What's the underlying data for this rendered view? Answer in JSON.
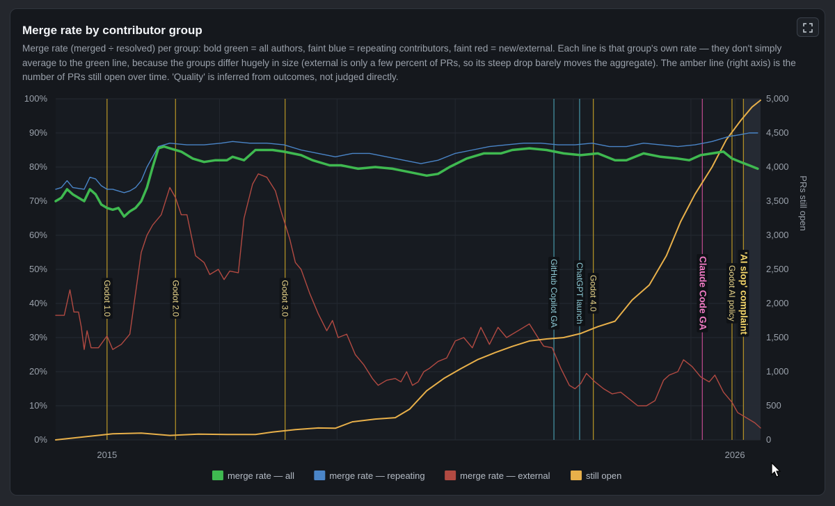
{
  "card": {
    "title": "Merge rate by contributor group",
    "description": "Merge rate (merged ÷ resolved) per group: bold green = all authors, faint blue = repeating contributors, faint red = new/external. Each line is that group's own rate — they don't simply average to the green line, because the groups differ hugely in size (external is only a few percent of PRs, so its steep drop barely moves the aggregate). The amber line (right axis) is the number of PRs still open over time. 'Quality' is inferred from outcomes, not judged directly.",
    "expand_icon": "expand-icon"
  },
  "chart_data": {
    "type": "line",
    "x_range": [
      2014.0,
      2026.35
    ],
    "x_ticks": [
      {
        "x": 2014.9,
        "label": "2015"
      },
      {
        "x": 2025.9,
        "label": "2026"
      }
    ],
    "x_minor_ticks": [
      2016.87,
      2018.93,
      2021.0,
      2023.07,
      2025.13
    ],
    "y_left": {
      "min": 0,
      "max": 100,
      "step": 10,
      "format": "percent"
    },
    "y_right": {
      "min": 0,
      "max": 5000,
      "step": 500,
      "label": "PRs still open"
    },
    "grid": true,
    "legend_position": "bottom",
    "series": [
      {
        "name": "merge rate — all",
        "axis": "left",
        "color": "#3fb950",
        "width": 3.5,
        "points": [
          [
            2014.0,
            70
          ],
          [
            2014.1,
            71
          ],
          [
            2014.2,
            73.5
          ],
          [
            2014.3,
            72
          ],
          [
            2014.4,
            71
          ],
          [
            2014.5,
            70
          ],
          [
            2014.6,
            73.5
          ],
          [
            2014.7,
            72
          ],
          [
            2014.8,
            69
          ],
          [
            2014.9,
            68
          ],
          [
            2015.0,
            67.5
          ],
          [
            2015.1,
            68
          ],
          [
            2015.2,
            65.5
          ],
          [
            2015.3,
            67
          ],
          [
            2015.4,
            68
          ],
          [
            2015.5,
            70
          ],
          [
            2015.6,
            74
          ],
          [
            2015.7,
            80
          ],
          [
            2015.8,
            85.5
          ],
          [
            2015.9,
            86
          ],
          [
            2016.0,
            85.5
          ],
          [
            2016.2,
            84.5
          ],
          [
            2016.4,
            82.5
          ],
          [
            2016.6,
            81.5
          ],
          [
            2016.8,
            82
          ],
          [
            2017.0,
            82
          ],
          [
            2017.1,
            83
          ],
          [
            2017.3,
            82
          ],
          [
            2017.5,
            85
          ],
          [
            2017.8,
            85
          ],
          [
            2018.0,
            84.5
          ],
          [
            2018.3,
            83.5
          ],
          [
            2018.5,
            82
          ],
          [
            2018.8,
            80.5
          ],
          [
            2019.0,
            80.5
          ],
          [
            2019.3,
            79.5
          ],
          [
            2019.6,
            80
          ],
          [
            2019.9,
            79.5
          ],
          [
            2020.2,
            78.5
          ],
          [
            2020.5,
            77.5
          ],
          [
            2020.7,
            78
          ],
          [
            2020.9,
            80
          ],
          [
            2021.2,
            82.5
          ],
          [
            2021.5,
            84
          ],
          [
            2021.8,
            84
          ],
          [
            2022.0,
            85
          ],
          [
            2022.3,
            85.5
          ],
          [
            2022.6,
            85
          ],
          [
            2022.9,
            84
          ],
          [
            2023.2,
            83.5
          ],
          [
            2023.5,
            84
          ],
          [
            2023.8,
            82
          ],
          [
            2024.0,
            82
          ],
          [
            2024.3,
            84
          ],
          [
            2024.6,
            83
          ],
          [
            2024.9,
            82.5
          ],
          [
            2025.1,
            82
          ],
          [
            2025.3,
            83.5
          ],
          [
            2025.5,
            84
          ],
          [
            2025.7,
            84.5
          ],
          [
            2025.85,
            82.5
          ],
          [
            2026.0,
            81.5
          ],
          [
            2026.15,
            80.5
          ],
          [
            2026.3,
            79.5
          ]
        ]
      },
      {
        "name": "merge rate — repeating",
        "axis": "left",
        "color": "#4a85c8",
        "width": 1.4,
        "points": [
          [
            2014.0,
            73.5
          ],
          [
            2014.1,
            74
          ],
          [
            2014.2,
            76
          ],
          [
            2014.3,
            74
          ],
          [
            2014.5,
            73.5
          ],
          [
            2014.6,
            77
          ],
          [
            2014.7,
            76.5
          ],
          [
            2014.8,
            74.5
          ],
          [
            2014.9,
            73.5
          ],
          [
            2015.0,
            73.5
          ],
          [
            2015.2,
            72.5
          ],
          [
            2015.3,
            73
          ],
          [
            2015.4,
            74
          ],
          [
            2015.5,
            76
          ],
          [
            2015.6,
            80
          ],
          [
            2015.8,
            86
          ],
          [
            2016.0,
            87
          ],
          [
            2016.3,
            86.5
          ],
          [
            2016.6,
            86.5
          ],
          [
            2016.9,
            87
          ],
          [
            2017.1,
            87.5
          ],
          [
            2017.4,
            87
          ],
          [
            2017.7,
            87
          ],
          [
            2018.0,
            86.5
          ],
          [
            2018.3,
            85
          ],
          [
            2018.6,
            84
          ],
          [
            2018.9,
            83
          ],
          [
            2019.2,
            84
          ],
          [
            2019.5,
            84
          ],
          [
            2019.8,
            83
          ],
          [
            2020.1,
            82
          ],
          [
            2020.4,
            81
          ],
          [
            2020.7,
            82
          ],
          [
            2021.0,
            84
          ],
          [
            2021.3,
            85
          ],
          [
            2021.6,
            86
          ],
          [
            2021.9,
            86.5
          ],
          [
            2022.2,
            87
          ],
          [
            2022.5,
            87
          ],
          [
            2022.8,
            86.5
          ],
          [
            2023.1,
            86.5
          ],
          [
            2023.4,
            87
          ],
          [
            2023.7,
            86
          ],
          [
            2024.0,
            86
          ],
          [
            2024.3,
            87
          ],
          [
            2024.6,
            86.5
          ],
          [
            2024.9,
            86
          ],
          [
            2025.2,
            86.5
          ],
          [
            2025.5,
            87.5
          ],
          [
            2025.8,
            89
          ],
          [
            2026.0,
            89.5
          ],
          [
            2026.15,
            90
          ],
          [
            2026.3,
            90
          ]
        ]
      },
      {
        "name": "merge rate — external",
        "axis": "left",
        "color": "#b24a42",
        "width": 1.4,
        "points": [
          [
            2014.0,
            36.5
          ],
          [
            2014.15,
            36.5
          ],
          [
            2014.25,
            44
          ],
          [
            2014.32,
            37.5
          ],
          [
            2014.4,
            37.5
          ],
          [
            2014.45,
            33
          ],
          [
            2014.5,
            26.5
          ],
          [
            2014.55,
            32
          ],
          [
            2014.62,
            27
          ],
          [
            2014.75,
            27
          ],
          [
            2014.9,
            30.5
          ],
          [
            2015.0,
            26.5
          ],
          [
            2015.15,
            28
          ],
          [
            2015.3,
            31
          ],
          [
            2015.5,
            55
          ],
          [
            2015.6,
            60
          ],
          [
            2015.7,
            63
          ],
          [
            2015.85,
            66
          ],
          [
            2016.0,
            74
          ],
          [
            2016.1,
            71
          ],
          [
            2016.2,
            66
          ],
          [
            2016.3,
            66
          ],
          [
            2016.45,
            54
          ],
          [
            2016.6,
            52
          ],
          [
            2016.7,
            48.5
          ],
          [
            2016.85,
            50
          ],
          [
            2016.95,
            47
          ],
          [
            2017.05,
            49.5
          ],
          [
            2017.2,
            49
          ],
          [
            2017.3,
            65
          ],
          [
            2017.45,
            75
          ],
          [
            2017.55,
            78
          ],
          [
            2017.7,
            77
          ],
          [
            2017.85,
            73
          ],
          [
            2017.95,
            67
          ],
          [
            2018.1,
            59
          ],
          [
            2018.2,
            52
          ],
          [
            2018.3,
            50
          ],
          [
            2018.45,
            43
          ],
          [
            2018.6,
            37
          ],
          [
            2018.75,
            32
          ],
          [
            2018.85,
            35
          ],
          [
            2018.95,
            30
          ],
          [
            2019.1,
            31
          ],
          [
            2019.25,
            25
          ],
          [
            2019.4,
            22
          ],
          [
            2019.55,
            18
          ],
          [
            2019.65,
            16
          ],
          [
            2019.8,
            17.5
          ],
          [
            2019.95,
            18
          ],
          [
            2020.05,
            17
          ],
          [
            2020.15,
            20
          ],
          [
            2020.25,
            16
          ],
          [
            2020.35,
            17
          ],
          [
            2020.45,
            20
          ],
          [
            2020.55,
            21
          ],
          [
            2020.7,
            23
          ],
          [
            2020.85,
            24
          ],
          [
            2021.0,
            29
          ],
          [
            2021.15,
            30
          ],
          [
            2021.3,
            27
          ],
          [
            2021.45,
            33
          ],
          [
            2021.6,
            28
          ],
          [
            2021.75,
            33
          ],
          [
            2021.9,
            30
          ],
          [
            2022.0,
            31
          ],
          [
            2022.15,
            32.5
          ],
          [
            2022.3,
            34
          ],
          [
            2022.45,
            30
          ],
          [
            2022.55,
            27.5
          ],
          [
            2022.7,
            27
          ],
          [
            2022.85,
            21
          ],
          [
            2023.0,
            16
          ],
          [
            2023.1,
            15
          ],
          [
            2023.2,
            16.5
          ],
          [
            2023.3,
            19.5
          ],
          [
            2023.45,
            17
          ],
          [
            2023.6,
            15
          ],
          [
            2023.75,
            13.5
          ],
          [
            2023.9,
            14
          ],
          [
            2024.05,
            12
          ],
          [
            2024.2,
            10
          ],
          [
            2024.35,
            10
          ],
          [
            2024.5,
            11.5
          ],
          [
            2024.65,
            17.5
          ],
          [
            2024.75,
            19
          ],
          [
            2024.9,
            20
          ],
          [
            2025.0,
            23.5
          ],
          [
            2025.15,
            21.5
          ],
          [
            2025.3,
            18.5
          ],
          [
            2025.45,
            17
          ],
          [
            2025.55,
            19
          ],
          [
            2025.7,
            14
          ],
          [
            2025.85,
            11
          ],
          [
            2025.95,
            8
          ],
          [
            2026.05,
            7
          ],
          [
            2026.15,
            6
          ],
          [
            2026.25,
            5
          ],
          [
            2026.35,
            3.5
          ]
        ]
      },
      {
        "name": "still open",
        "axis": "right",
        "color": "#e8b04a",
        "width": 2,
        "points": [
          [
            2014.0,
            0
          ],
          [
            2014.5,
            45
          ],
          [
            2015.0,
            90
          ],
          [
            2015.5,
            100
          ],
          [
            2016.0,
            65
          ],
          [
            2016.5,
            85
          ],
          [
            2017.0,
            80
          ],
          [
            2017.5,
            80
          ],
          [
            2017.8,
            115
          ],
          [
            2018.2,
            150
          ],
          [
            2018.6,
            175
          ],
          [
            2018.9,
            170
          ],
          [
            2019.2,
            265
          ],
          [
            2019.6,
            305
          ],
          [
            2019.95,
            325
          ],
          [
            2020.2,
            450
          ],
          [
            2020.5,
            720
          ],
          [
            2020.8,
            900
          ],
          [
            2021.1,
            1045
          ],
          [
            2021.4,
            1180
          ],
          [
            2021.7,
            1280
          ],
          [
            2022.0,
            1370
          ],
          [
            2022.3,
            1450
          ],
          [
            2022.6,
            1480
          ],
          [
            2022.9,
            1500
          ],
          [
            2023.2,
            1560
          ],
          [
            2023.5,
            1660
          ],
          [
            2023.8,
            1740
          ],
          [
            2024.1,
            2050
          ],
          [
            2024.4,
            2270
          ],
          [
            2024.7,
            2700
          ],
          [
            2024.95,
            3200
          ],
          [
            2025.2,
            3600
          ],
          [
            2025.5,
            4000
          ],
          [
            2025.75,
            4400
          ],
          [
            2026.0,
            4680
          ],
          [
            2026.2,
            4880
          ],
          [
            2026.35,
            4980
          ]
        ]
      }
    ],
    "events": [
      {
        "x": 2014.9,
        "label": "Godot 1.0",
        "color": "#c9a227",
        "y_pct": 41.5,
        "text_color": "#e8d48a",
        "bold": false
      },
      {
        "x": 2016.1,
        "label": "Godot 2.0",
        "color": "#c9a227",
        "y_pct": 41.5,
        "text_color": "#e8d48a",
        "bold": false
      },
      {
        "x": 2018.02,
        "label": "Godot 3.0",
        "color": "#c9a227",
        "y_pct": 41.5,
        "text_color": "#e8d48a",
        "bold": false
      },
      {
        "x": 2022.73,
        "label": "GitHub Copilot GA",
        "color": "#4ba3b6",
        "y_pct": 43,
        "text_color": "#8fcbd6",
        "bold": false
      },
      {
        "x": 2023.18,
        "label": "ChatGPT launch",
        "color": "#4ba3b6",
        "y_pct": 43,
        "text_color": "#8fcbd6",
        "bold": false
      },
      {
        "x": 2023.42,
        "label": "Godot 4.0",
        "color": "#c9a227",
        "y_pct": 43,
        "text_color": "#e8d48a",
        "bold": false
      },
      {
        "x": 2025.33,
        "label": "Claude Code GA",
        "color": "#d14f9a",
        "y_pct": 43,
        "text_color": "#f07bc4",
        "bold": true
      },
      {
        "x": 2025.85,
        "label": "Godot AI policy",
        "color": "#c9a227",
        "y_pct": 43,
        "text_color": "#e8d48a",
        "bold": false
      },
      {
        "x": 2026.05,
        "label": "'AI slop' complaint",
        "color": "#c9a227",
        "y_pct": 43,
        "text_color": "#f5d66a",
        "bold": true
      }
    ],
    "shaded_range": [
      2026.05,
      2026.35
    ],
    "legend": [
      {
        "label": "merge rate — all",
        "color": "#3fb950"
      },
      {
        "label": "merge rate — repeating",
        "color": "#4a85c8"
      },
      {
        "label": "merge rate — external",
        "color": "#b24a42"
      },
      {
        "label": "still open",
        "color": "#e8b04a"
      }
    ]
  }
}
